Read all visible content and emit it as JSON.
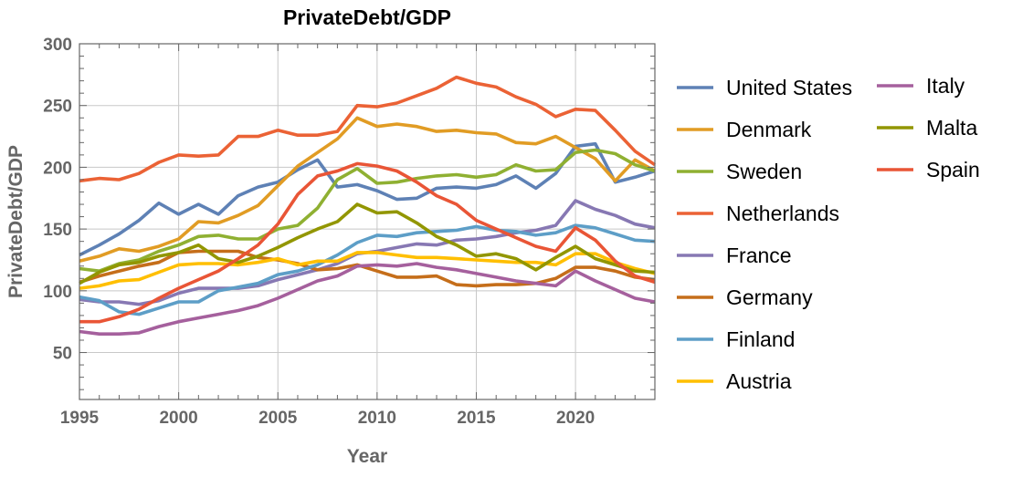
{
  "chart_data": {
    "type": "line",
    "title": "PrivateDebt/GDP",
    "xlabel": "Year",
    "ylabel": "PrivateDebt/GDP",
    "xlim": [
      1995,
      2024
    ],
    "ylim": [
      12,
      300
    ],
    "grid": true,
    "legend_placement": "right",
    "x_ticks": [
      "1995",
      "2000",
      "2005",
      "2010",
      "2015",
      "2020"
    ],
    "y_ticks": [
      "50",
      "100",
      "150",
      "200",
      "250",
      "300"
    ],
    "x": [
      1995,
      1996,
      1997,
      1998,
      1999,
      2000,
      2001,
      2002,
      2003,
      2004,
      2005,
      2006,
      2007,
      2008,
      2009,
      2010,
      2011,
      2012,
      2013,
      2014,
      2015,
      2016,
      2017,
      2018,
      2019,
      2020,
      2021,
      2022,
      2023,
      2024
    ],
    "series": [
      {
        "name": "United States",
        "color": "#5E81B5",
        "values": [
          129,
          137,
          146,
          157,
          171,
          162,
          170,
          162,
          177,
          184,
          188,
          198,
          206,
          184,
          186,
          181,
          174,
          175,
          183,
          184,
          183,
          186,
          193,
          183,
          195,
          217,
          219,
          188,
          192,
          197
        ]
      },
      {
        "name": "Denmark",
        "color": "#E19C24",
        "values": [
          124,
          128,
          134,
          132,
          136,
          142,
          156,
          155,
          161,
          169,
          185,
          201,
          212,
          223,
          240,
          233,
          235,
          233,
          229,
          230,
          228,
          227,
          220,
          219,
          225,
          216,
          207,
          189,
          206,
          197
        ]
      },
      {
        "name": "Sweden",
        "color": "#8FB032",
        "values": [
          118,
          116,
          122,
          125,
          132,
          137,
          144,
          145,
          142,
          142,
          150,
          153,
          167,
          190,
          199,
          187,
          188,
          191,
          193,
          194,
          192,
          194,
          202,
          197,
          198,
          212,
          214,
          211,
          202,
          197
        ]
      },
      {
        "name": "Netherlands",
        "color": "#EB6235",
        "values": [
          189,
          191,
          190,
          195,
          204,
          210,
          209,
          210,
          225,
          225,
          230,
          226,
          226,
          229,
          250,
          249,
          252,
          258,
          264,
          273,
          268,
          265,
          257,
          251,
          241,
          247,
          246,
          230,
          213,
          202
        ]
      },
      {
        "name": "France",
        "color": "#8778B3",
        "values": [
          93,
          91,
          91,
          89,
          92,
          98,
          102,
          102,
          102,
          104,
          109,
          113,
          117,
          122,
          130,
          132,
          135,
          138,
          137,
          141,
          142,
          144,
          147,
          149,
          153,
          173,
          166,
          161,
          154,
          151
        ]
      },
      {
        "name": "Germany",
        "color": "#C56E1A",
        "values": [
          107,
          112,
          116,
          120,
          123,
          131,
          132,
          132,
          132,
          127,
          125,
          122,
          117,
          118,
          121,
          116,
          111,
          111,
          112,
          105,
          104,
          105,
          105,
          106,
          110,
          119,
          119,
          116,
          111,
          109
        ]
      },
      {
        "name": "Finland",
        "color": "#5D9EC7",
        "values": [
          95,
          92,
          83,
          81,
          86,
          91,
          91,
          100,
          103,
          106,
          113,
          116,
          121,
          129,
          139,
          145,
          144,
          147,
          148,
          149,
          152,
          149,
          148,
          145,
          147,
          153,
          151,
          146,
          141,
          140
        ]
      },
      {
        "name": "Austria",
        "color": "#FFBF00",
        "values": [
          102,
          104,
          108,
          109,
          115,
          121,
          122,
          122,
          121,
          123,
          126,
          121,
          124,
          124,
          131,
          131,
          129,
          127,
          127,
          126,
          125,
          124,
          123,
          123,
          121,
          130,
          130,
          123,
          118,
          114
        ]
      },
      {
        "name": "Italy",
        "color": "#A5609D",
        "values": [
          67,
          65,
          65,
          66,
          71,
          75,
          78,
          81,
          84,
          88,
          94,
          101,
          108,
          112,
          120,
          121,
          120,
          122,
          119,
          117,
          114,
          111,
          108,
          106,
          104,
          116,
          108,
          101,
          94,
          91
        ]
      },
      {
        "name": "Malta",
        "color": "#929600",
        "values": [
          106,
          115,
          121,
          123,
          128,
          131,
          137,
          126,
          123,
          128,
          135,
          143,
          150,
          156,
          170,
          163,
          164,
          155,
          144,
          137,
          128,
          130,
          126,
          117,
          127,
          136,
          126,
          121,
          116,
          115
        ]
      },
      {
        "name": "Spain",
        "color": "#E95536",
        "values": [
          75,
          75,
          79,
          85,
          94,
          102,
          109,
          116,
          126,
          137,
          154,
          178,
          193,
          197,
          203,
          201,
          197,
          188,
          177,
          170,
          157,
          150,
          143,
          136,
          132,
          151,
          141,
          124,
          112,
          107
        ]
      }
    ]
  }
}
